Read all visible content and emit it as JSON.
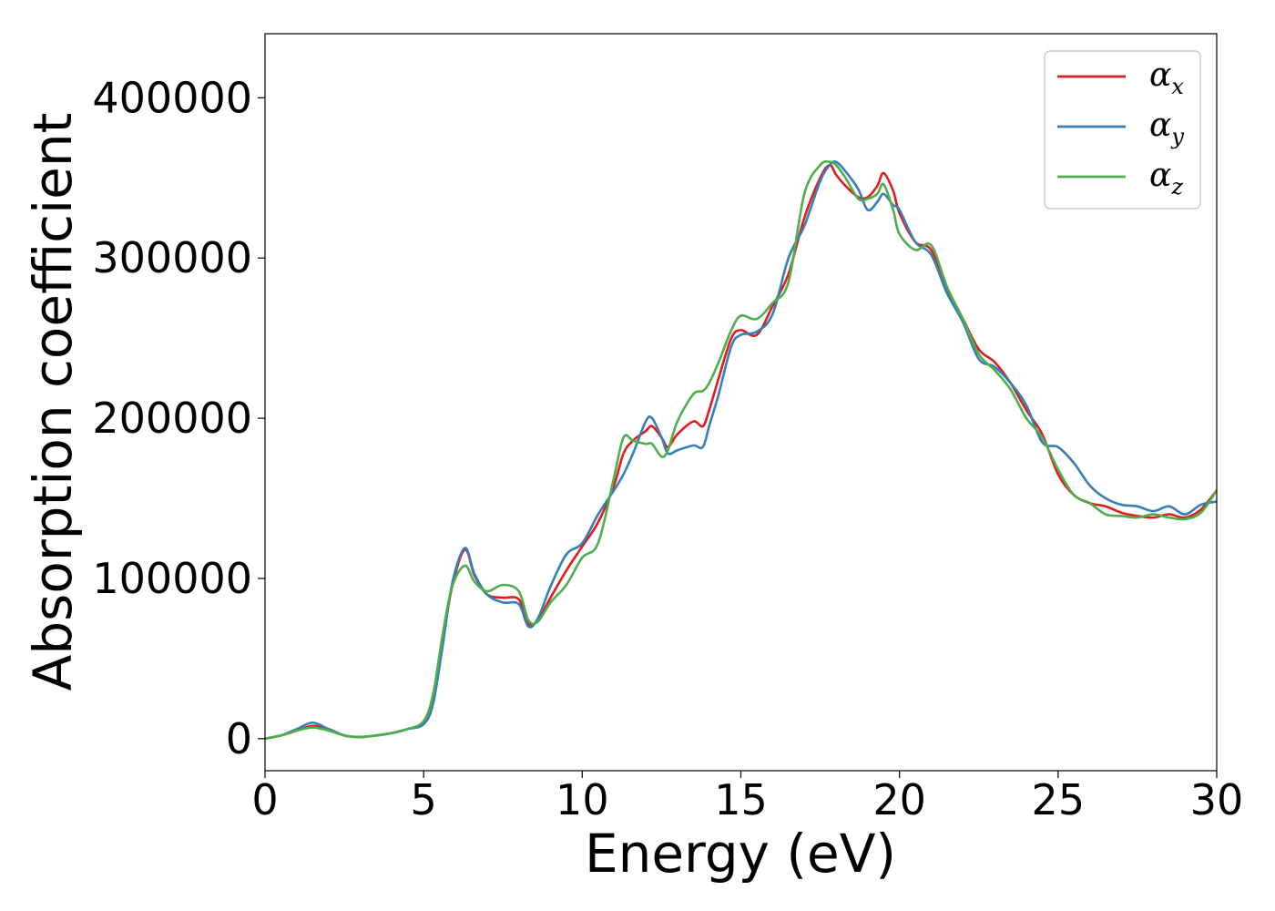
{
  "chart_data": {
    "type": "line",
    "title": "",
    "xlabel": "Energy (eV)",
    "ylabel": "Absorption coefficient",
    "xlim": [
      0,
      30
    ],
    "ylim": [
      -20000,
      440000
    ],
    "xticks": [
      0,
      5,
      10,
      15,
      20,
      25,
      30
    ],
    "yticks": [
      0,
      100000,
      200000,
      300000,
      400000
    ],
    "grid": false,
    "legend_position": "top-right",
    "series": [
      {
        "name": "α",
        "subscript": "x",
        "color": "#e41a1c",
        "x": [
          0,
          0.5,
          1,
          1.5,
          2,
          2.5,
          3,
          3.5,
          4,
          4.5,
          5,
          5.3,
          5.6,
          5.9,
          6.3,
          6.6,
          7,
          7.5,
          8,
          8.3,
          8.6,
          9,
          9.5,
          10,
          10.5,
          11,
          11.3,
          11.6,
          12,
          12.2,
          12.5,
          12.7,
          13,
          13.5,
          13.8,
          14,
          14.3,
          14.7,
          15,
          15.5,
          16,
          16.5,
          17,
          17.5,
          17.8,
          18,
          18.3,
          18.7,
          19,
          19.3,
          19.5,
          19.8,
          20,
          20.5,
          21,
          21.5,
          22,
          22.5,
          23,
          23.5,
          24,
          24.5,
          25,
          25.5,
          26,
          26.5,
          27,
          27.5,
          28,
          28.5,
          29,
          29.5,
          30
        ],
        "y": [
          0,
          2000,
          5000,
          8000,
          6000,
          2000,
          1000,
          2000,
          3500,
          6000,
          10000,
          25000,
          60000,
          95000,
          118000,
          102000,
          90000,
          88000,
          87000,
          72000,
          74000,
          88000,
          105000,
          120000,
          135000,
          158000,
          178000,
          186000,
          192000,
          195000,
          188000,
          182000,
          190000,
          198000,
          195000,
          205000,
          225000,
          250000,
          255000,
          252000,
          270000,
          290000,
          325000,
          350000,
          358000,
          352000,
          345000,
          338000,
          338000,
          345000,
          353000,
          342000,
          328000,
          310000,
          305000,
          280000,
          262000,
          243000,
          235000,
          222000,
          205000,
          190000,
          165000,
          152000,
          147000,
          145000,
          141000,
          139000,
          138000,
          140000,
          138000,
          143000,
          155000
        ]
      },
      {
        "name": "α",
        "subscript": "y",
        "color": "#377eb8",
        "x": [
          0,
          0.5,
          1,
          1.5,
          2,
          2.5,
          3,
          3.5,
          4,
          4.5,
          5,
          5.3,
          5.6,
          5.9,
          6.3,
          6.6,
          7,
          7.5,
          8,
          8.3,
          8.6,
          9,
          9.5,
          10,
          10.5,
          11,
          11.3,
          11.6,
          12,
          12.2,
          12.5,
          12.7,
          13,
          13.5,
          13.8,
          14,
          14.3,
          14.7,
          15,
          15.5,
          16,
          16.5,
          17,
          17.5,
          17.8,
          18,
          18.3,
          18.7,
          19,
          19.3,
          19.5,
          19.8,
          20,
          20.5,
          21,
          21.5,
          22,
          22.5,
          23,
          23.5,
          24,
          24.5,
          25,
          25.5,
          26,
          26.5,
          27,
          27.5,
          28,
          28.5,
          29,
          29.5,
          30
        ],
        "y": [
          0,
          2000,
          6000,
          10000,
          6000,
          2000,
          1000,
          2000,
          3500,
          6000,
          9000,
          22000,
          58000,
          97000,
          119000,
          103000,
          90000,
          85000,
          84000,
          70000,
          75000,
          95000,
          115000,
          122000,
          140000,
          155000,
          165000,
          178000,
          198000,
          200000,
          188000,
          178000,
          180000,
          183000,
          182000,
          195000,
          215000,
          245000,
          252000,
          254000,
          265000,
          300000,
          320000,
          348000,
          358000,
          360000,
          354000,
          343000,
          330000,
          335000,
          340000,
          333000,
          330000,
          310000,
          302000,
          278000,
          260000,
          237000,
          232000,
          222000,
          208000,
          185000,
          182000,
          172000,
          158000,
          150000,
          146000,
          145000,
          142000,
          145000,
          140000,
          146000,
          148000
        ]
      },
      {
        "name": "α",
        "subscript": "z",
        "color": "#4daf4a",
        "x": [
          0,
          0.5,
          1,
          1.5,
          2,
          2.5,
          3,
          3.5,
          4,
          4.5,
          5,
          5.3,
          5.6,
          5.9,
          6.3,
          6.6,
          7,
          7.5,
          8,
          8.3,
          8.6,
          9,
          9.5,
          10,
          10.5,
          11,
          11.3,
          11.6,
          12,
          12.2,
          12.5,
          12.7,
          13,
          13.5,
          13.8,
          14,
          14.3,
          14.7,
          15,
          15.5,
          16,
          16.5,
          17,
          17.5,
          17.8,
          18,
          18.3,
          18.7,
          19,
          19.3,
          19.5,
          19.8,
          20,
          20.5,
          21,
          21.5,
          22,
          22.5,
          23,
          23.5,
          24,
          24.5,
          25,
          25.5,
          26,
          26.5,
          27,
          27.5,
          28,
          28.5,
          29,
          29.5,
          30
        ],
        "y": [
          0,
          2000,
          5000,
          7000,
          5000,
          2000,
          1000,
          2000,
          3500,
          6000,
          11000,
          28000,
          65000,
          95000,
          108000,
          98000,
          92000,
          96000,
          92000,
          74000,
          73000,
          85000,
          96000,
          113000,
          122000,
          163000,
          188000,
          186000,
          184000,
          184000,
          176000,
          180000,
          198000,
          215000,
          217000,
          222000,
          235000,
          255000,
          264000,
          262000,
          272000,
          285000,
          340000,
          358000,
          360000,
          358000,
          350000,
          337000,
          337000,
          340000,
          346000,
          330000,
          315000,
          305000,
          308000,
          282000,
          262000,
          240000,
          230000,
          218000,
          200000,
          188000,
          168000,
          152000,
          147000,
          140000,
          139000,
          138000,
          140000,
          138000,
          137000,
          141000,
          155000
        ]
      }
    ]
  }
}
